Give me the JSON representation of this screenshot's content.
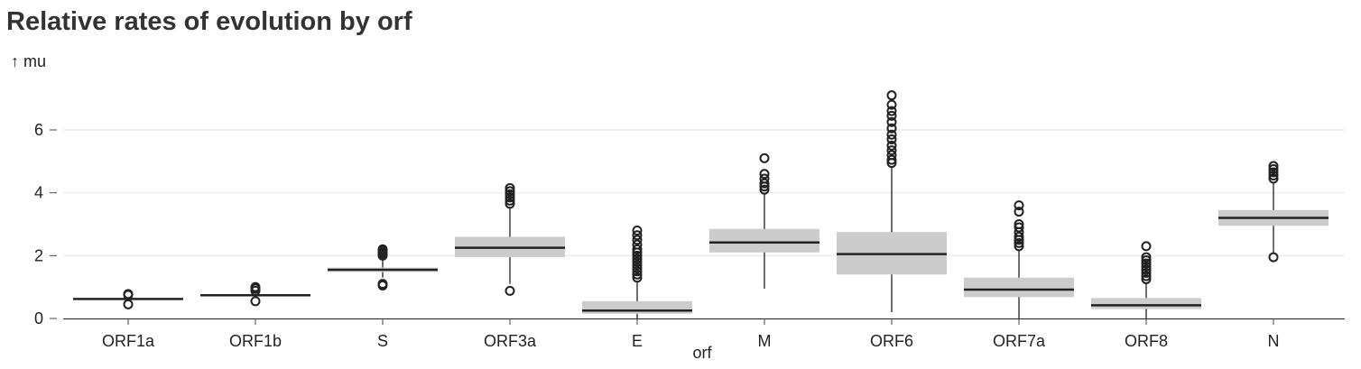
{
  "chart_data": {
    "type": "box",
    "title": "Relative rates of evolution by orf",
    "ylabel": "↑ mu",
    "xlabel": "orf",
    "ylim": [
      0,
      7.2
    ],
    "yticks": [
      0,
      2,
      4,
      6
    ],
    "grid": true,
    "box_color": "#cccccc",
    "median_color": "#222222",
    "categories": [
      "ORF1a",
      "ORF1b",
      "S",
      "ORF3a",
      "E",
      "M",
      "ORF6",
      "ORF7a",
      "ORF8",
      "N"
    ],
    "boxes": [
      {
        "category": "ORF1a",
        "whisker_low": 0.6,
        "q1": 0.6,
        "median": 0.62,
        "q3": 0.64,
        "whisker_high": 0.66,
        "outliers": [
          0.45,
          0.75,
          0.78
        ]
      },
      {
        "category": "ORF1b",
        "whisker_low": 0.72,
        "q1": 0.72,
        "median": 0.74,
        "q3": 0.77,
        "whisker_high": 0.79,
        "outliers": [
          0.55,
          0.88,
          0.95,
          1.0
        ]
      },
      {
        "category": "S",
        "whisker_low": 1.3,
        "q1": 1.48,
        "median": 1.55,
        "q3": 1.62,
        "whisker_high": 1.85,
        "outliers": [
          1.05,
          1.1,
          2.0,
          2.05,
          2.1,
          2.15,
          2.2
        ]
      },
      {
        "category": "ORF3a",
        "whisker_low": 1.1,
        "q1": 1.95,
        "median": 2.25,
        "q3": 2.6,
        "whisker_high": 3.55,
        "outliers": [
          0.88,
          3.65,
          3.75,
          3.85,
          3.95,
          4.05,
          4.15
        ]
      },
      {
        "category": "E",
        "whisker_low": 0.0,
        "q1": 0.15,
        "median": 0.25,
        "q3": 0.55,
        "whisker_high": 1.2,
        "outliers": [
          1.3,
          1.4,
          1.5,
          1.6,
          1.7,
          1.8,
          1.9,
          2.0,
          2.1,
          2.2,
          2.35,
          2.5,
          2.65,
          2.8
        ]
      },
      {
        "category": "M",
        "whisker_low": 0.95,
        "q1": 2.1,
        "median": 2.42,
        "q3": 2.85,
        "whisker_high": 4.0,
        "outliers": [
          4.1,
          4.2,
          4.3,
          4.45,
          4.6,
          5.1
        ]
      },
      {
        "category": "ORF6",
        "whisker_low": 0.2,
        "q1": 1.4,
        "median": 2.05,
        "q3": 2.75,
        "whisker_high": 4.85,
        "outliers": [
          4.95,
          5.05,
          5.2,
          5.35,
          5.5,
          5.7,
          5.85,
          6.05,
          6.25,
          6.45,
          6.6,
          6.8,
          7.1
        ]
      },
      {
        "category": "ORF7a",
        "whisker_low": 0.0,
        "q1": 0.68,
        "median": 0.92,
        "q3": 1.3,
        "whisker_high": 2.2,
        "outliers": [
          2.3,
          2.4,
          2.5,
          2.6,
          2.75,
          2.9,
          3.0,
          3.4,
          3.6
        ]
      },
      {
        "category": "ORF8",
        "whisker_low": 0.0,
        "q1": 0.3,
        "median": 0.42,
        "q3": 0.65,
        "whisker_high": 1.15,
        "outliers": [
          1.25,
          1.35,
          1.45,
          1.55,
          1.65,
          1.75,
          1.85,
          1.95,
          2.3
        ]
      },
      {
        "category": "N",
        "whisker_low": 2.05,
        "q1": 2.95,
        "median": 3.2,
        "q3": 3.45,
        "whisker_high": 4.35,
        "outliers": [
          1.95,
          4.45,
          4.55,
          4.65,
          4.75,
          4.85
        ]
      }
    ]
  }
}
